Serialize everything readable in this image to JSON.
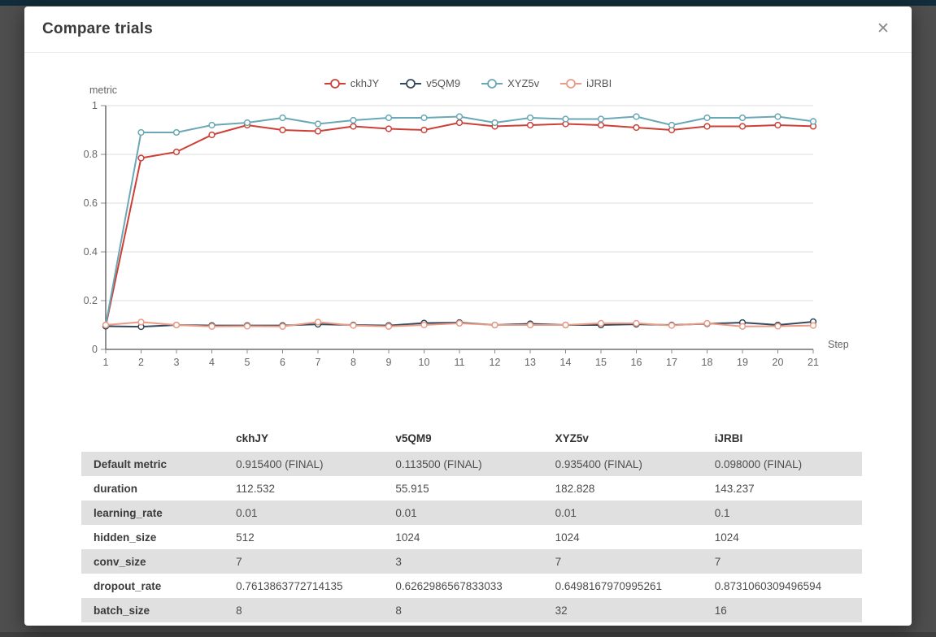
{
  "modal": {
    "title": "Compare trials",
    "close_icon": "✕"
  },
  "chart_data": {
    "type": "line",
    "title": "",
    "ylabel": "metric",
    "xlabel": "Step",
    "x": [
      1,
      2,
      3,
      4,
      5,
      6,
      7,
      8,
      9,
      10,
      11,
      12,
      13,
      14,
      15,
      16,
      17,
      18,
      19,
      20,
      21
    ],
    "ylim": [
      0,
      1
    ],
    "yticks": [
      0,
      0.2,
      0.4,
      0.6,
      0.8,
      1
    ],
    "grid": true,
    "legend_position": "top",
    "series": [
      {
        "name": "ckhJY",
        "color": "#cc4038",
        "final": "0.915400",
        "values": [
          0.095,
          0.785,
          0.81,
          0.88,
          0.92,
          0.9,
          0.895,
          0.915,
          0.905,
          0.9,
          0.93,
          0.915,
          0.92,
          0.925,
          0.92,
          0.91,
          0.9,
          0.915,
          0.915,
          0.92,
          0.9154
        ]
      },
      {
        "name": "v5QM9",
        "color": "#35495e",
        "final": "0.113500",
        "values": [
          0.095,
          0.093,
          0.1,
          0.098,
          0.098,
          0.098,
          0.103,
          0.1,
          0.098,
          0.108,
          0.11,
          0.1,
          0.105,
          0.1,
          0.1,
          0.103,
          0.1,
          0.105,
          0.11,
          0.1,
          0.1135
        ]
      },
      {
        "name": "XYZ5v",
        "color": "#69a8b4",
        "final": "0.935400",
        "values": [
          0.1,
          0.89,
          0.89,
          0.92,
          0.93,
          0.95,
          0.925,
          0.94,
          0.95,
          0.95,
          0.955,
          0.93,
          0.95,
          0.945,
          0.945,
          0.955,
          0.92,
          0.95,
          0.95,
          0.955,
          0.9354
        ]
      },
      {
        "name": "iJRBI",
        "color": "#e99b85",
        "final": "0.098000",
        "values": [
          0.1,
          0.112,
          0.1,
          0.094,
          0.095,
          0.094,
          0.112,
          0.098,
          0.094,
          0.1,
          0.107,
          0.1,
          0.1,
          0.1,
          0.107,
          0.107,
          0.098,
          0.107,
          0.094,
          0.095,
          0.098
        ]
      }
    ]
  },
  "table": {
    "columns": [
      "",
      "ckhJY",
      "v5QM9",
      "XYZ5v",
      "iJRBI"
    ],
    "rows": [
      {
        "label": "Default metric",
        "values": [
          "0.915400 (FINAL)",
          "0.113500 (FINAL)",
          "0.935400 (FINAL)",
          "0.098000 (FINAL)"
        ]
      },
      {
        "label": "duration",
        "values": [
          "112.532",
          "55.915",
          "182.828",
          "143.237"
        ]
      },
      {
        "label": "learning_rate",
        "values": [
          "0.01",
          "0.01",
          "0.01",
          "0.1"
        ]
      },
      {
        "label": "hidden_size",
        "values": [
          "512",
          "1024",
          "1024",
          "1024"
        ]
      },
      {
        "label": "conv_size",
        "values": [
          "7",
          "3",
          "7",
          "7"
        ]
      },
      {
        "label": "dropout_rate",
        "values": [
          "0.7613863772714135",
          "0.6262986567833033",
          "0.6498167970995261",
          "0.8731060309496594"
        ]
      },
      {
        "label": "batch_size",
        "values": [
          "8",
          "8",
          "32",
          "16"
        ]
      }
    ]
  },
  "colors": {
    "overlay_background": "#4e4e4e",
    "top_strip": "#112c3a",
    "shaded_row": "#e0e0e0",
    "gridline": "#dddddd",
    "axis": "#555555"
  }
}
